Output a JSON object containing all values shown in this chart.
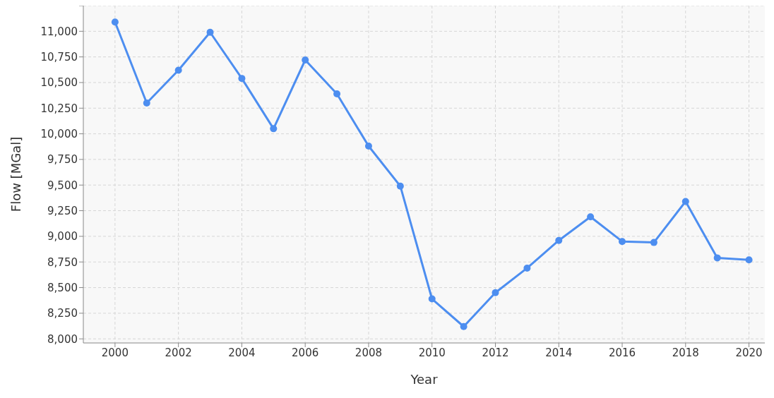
{
  "chart_data": {
    "type": "line",
    "xlabel": "Year",
    "ylabel": "Flow [MGal]",
    "x": [
      2000,
      2001,
      2002,
      2003,
      2004,
      2005,
      2006,
      2007,
      2008,
      2009,
      2010,
      2011,
      2012,
      2013,
      2014,
      2015,
      2016,
      2017,
      2018,
      2019,
      2020
    ],
    "series": [
      {
        "color": "#4d8ef0",
        "values": [
          11090,
          10300,
          10620,
          10990,
          10540,
          10050,
          10720,
          10390,
          9880,
          9490,
          8390,
          8120,
          8450,
          8690,
          8960,
          9190,
          8950,
          8940,
          9340,
          8790,
          8770
        ]
      }
    ],
    "xlim": [
      1999,
      2020.5
    ],
    "xticks": [
      2000,
      2002,
      2004,
      2006,
      2008,
      2010,
      2012,
      2014,
      2016,
      2018,
      2020
    ],
    "ylim": [
      7960,
      11250
    ],
    "yticks": [
      {
        "value": 8000,
        "label": "8,000"
      },
      {
        "value": 8250,
        "label": "8,250"
      },
      {
        "value": 8500,
        "label": "8,500"
      },
      {
        "value": 8750,
        "label": "8,750"
      },
      {
        "value": 9000,
        "label": "9,000"
      },
      {
        "value": 9250,
        "label": "9,250"
      },
      {
        "value": 9500,
        "label": "9,500"
      },
      {
        "value": 9750,
        "label": "9,750"
      },
      {
        "value": 10000,
        "label": "10,000"
      },
      {
        "value": 10250,
        "label": "10,250"
      },
      {
        "value": 10500,
        "label": "10,500"
      },
      {
        "value": 10750,
        "label": "10,750"
      },
      {
        "value": 11000,
        "label": "11,000"
      },
      {
        "value": 11250,
        "label": null
      }
    ],
    "grid": true,
    "marker": "circle",
    "line_style": "solid",
    "legend": false
  }
}
